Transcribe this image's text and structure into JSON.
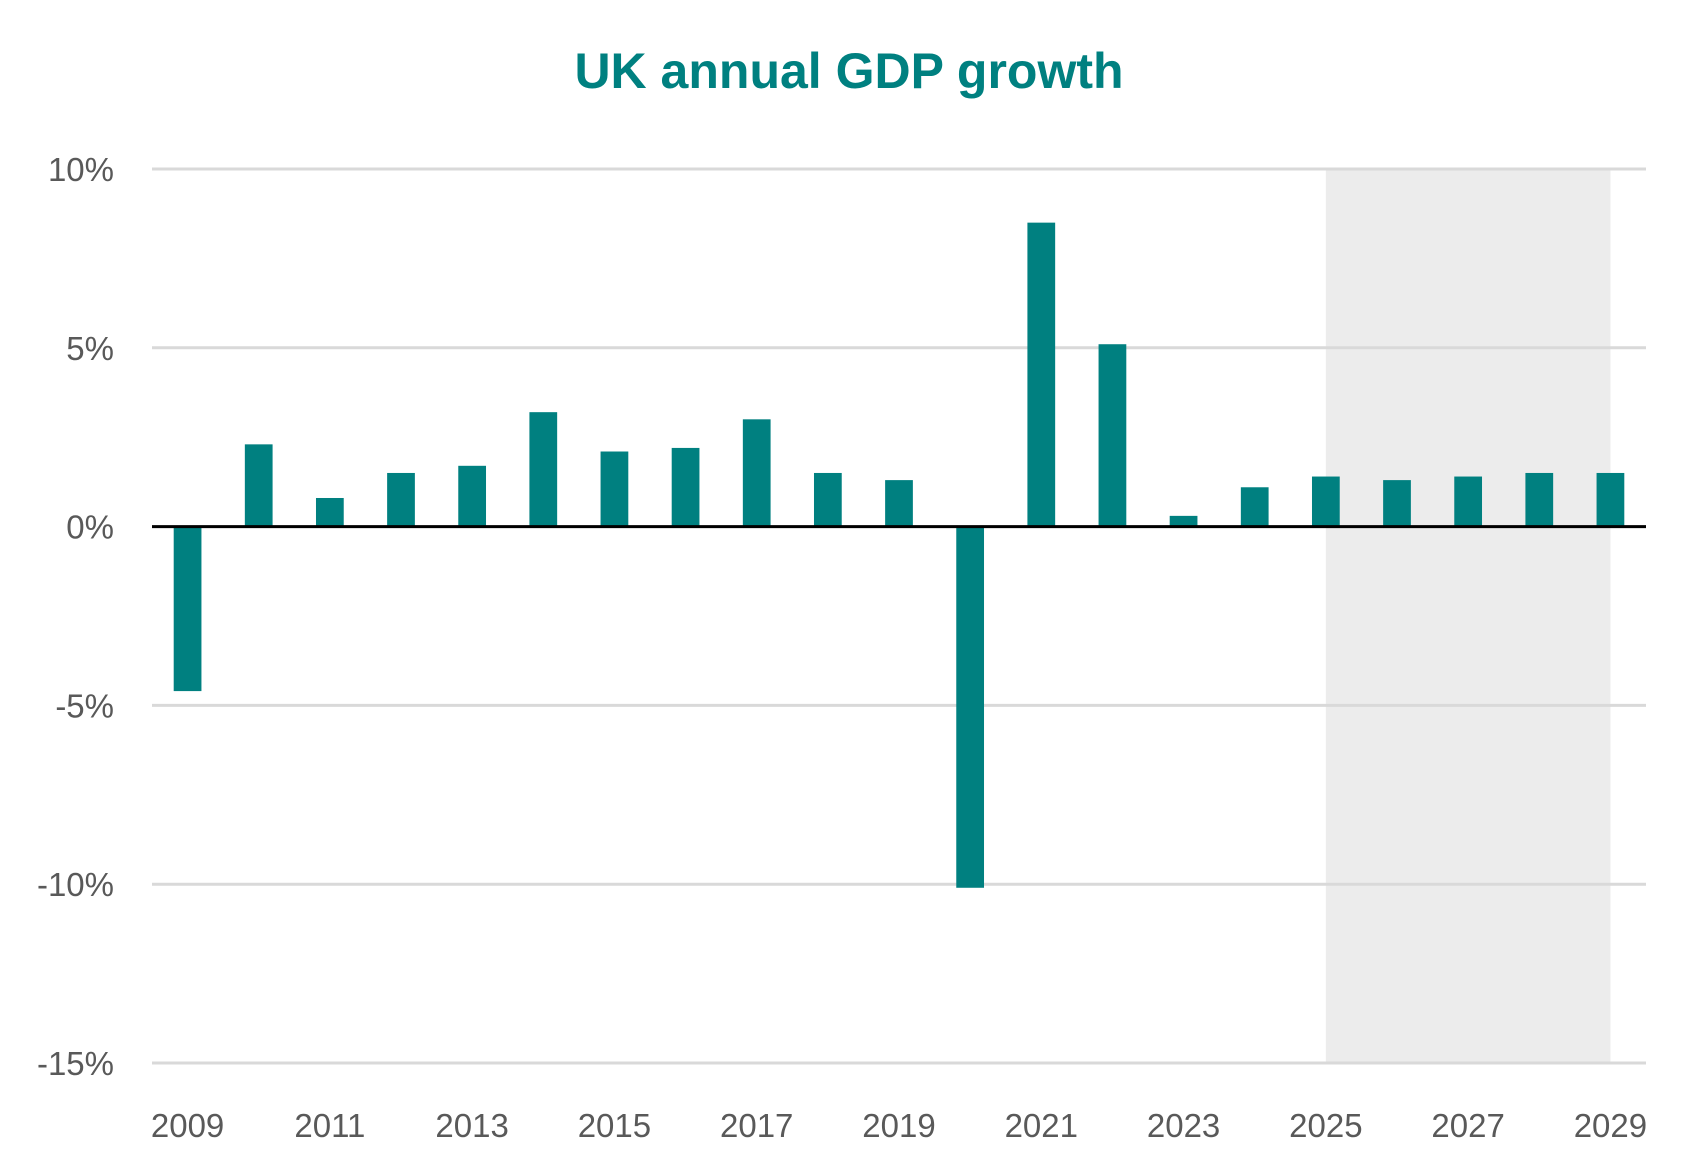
{
  "chart_data": {
    "type": "bar",
    "title": "UK annual GDP growth",
    "xlabel": "",
    "ylabel": "",
    "categories": [
      "2009",
      "2010",
      "2011",
      "2012",
      "2013",
      "2014",
      "2015",
      "2016",
      "2017",
      "2018",
      "2019",
      "2020",
      "2021",
      "2022",
      "2023",
      "2024",
      "2025",
      "2026",
      "2027",
      "2028",
      "2029"
    ],
    "series": [
      {
        "name": "GDP growth",
        "values": [
          -4.6,
          2.3,
          0.8,
          1.5,
          1.7,
          3.2,
          2.1,
          2.2,
          3.0,
          1.5,
          1.3,
          -10.1,
          8.5,
          5.1,
          0.3,
          1.1,
          1.4,
          1.3,
          1.4,
          1.5,
          1.5
        ]
      }
    ],
    "ylim": [
      -15,
      10
    ],
    "yticks": [
      10,
      5,
      0,
      -5,
      -10,
      -15
    ],
    "ytick_labels": [
      "10%",
      "5%",
      "0%",
      "-5%",
      "-10%",
      "-15%"
    ],
    "xtick_labels": [
      "2009",
      "2011",
      "2013",
      "2015",
      "2017",
      "2019",
      "2021",
      "2023",
      "2025",
      "2027",
      "2029"
    ],
    "forecast_shading": {
      "from": "2025",
      "to": "2029"
    },
    "grid": true,
    "legend": "none",
    "colors": {
      "bar": "#008080",
      "title": "#008080",
      "grid": "#d9d9d9",
      "shade": "#ececec",
      "zero_line": "#000000",
      "tick_text": "#595959"
    }
  }
}
